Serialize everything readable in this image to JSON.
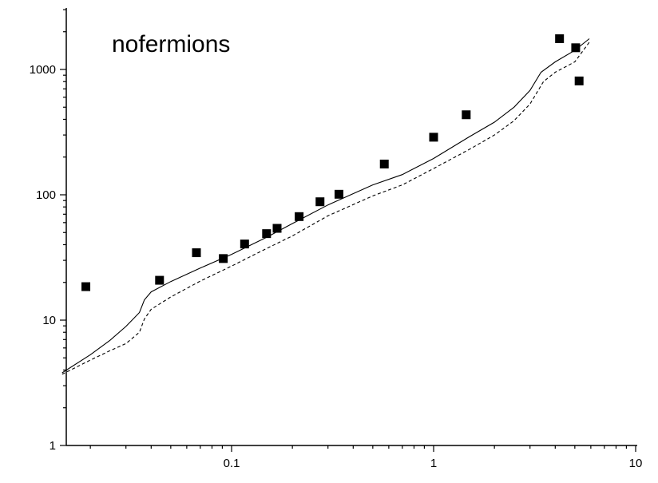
{
  "chart_data": {
    "type": "scatter",
    "title": "nofermions",
    "xlabel": "",
    "ylabel": "",
    "xscale": "log",
    "yscale": "log",
    "xlim": [
      0.0145,
      10
    ],
    "ylim": [
      1,
      5000
    ],
    "grid": false,
    "x_ticks": [
      {
        "value": 0.1,
        "label": "0.1"
      },
      {
        "value": 1,
        "label": "1"
      },
      {
        "value": 10,
        "label": "10"
      }
    ],
    "y_ticks": [
      {
        "value": 1,
        "label": "1"
      },
      {
        "value": 10,
        "label": "10"
      },
      {
        "value": 100,
        "label": "100"
      },
      {
        "value": 1000,
        "label": "1000"
      }
    ],
    "series": [
      {
        "style": "markers",
        "marker": "filled-square",
        "color": "#000000",
        "x": [
          0.019,
          0.044,
          0.067,
          0.091,
          0.116,
          0.149,
          0.168,
          0.216,
          0.274,
          0.34,
          0.57,
          1.0,
          1.45,
          4.2,
          5.05,
          5.25
        ],
        "y": [
          18.5,
          20.8,
          34.5,
          31.0,
          40.5,
          49.0,
          54.0,
          67.0,
          88.0,
          101.0,
          176.0,
          288.0,
          435.0,
          1760.0,
          1490.0,
          810.0
        ]
      },
      {
        "style": "solid-line",
        "color": "#000000",
        "x": [
          0.0145,
          0.02,
          0.025,
          0.03,
          0.035,
          0.037,
          0.04,
          0.05,
          0.07,
          0.1,
          0.15,
          0.2,
          0.3,
          0.5,
          0.7,
          1.0,
          1.5,
          2.0,
          2.5,
          3.0,
          3.4,
          4.0,
          5.0,
          5.9
        ],
        "y": [
          3.8,
          5.3,
          6.9,
          8.9,
          11.5,
          14.5,
          16.8,
          20.3,
          26.0,
          33.5,
          46.0,
          59.0,
          83.0,
          120.0,
          145.0,
          195.0,
          290.0,
          380.0,
          500.0,
          680.0,
          950.0,
          1150.0,
          1420.0,
          1760.0
        ]
      },
      {
        "style": "dashed-line",
        "color": "#000000",
        "x": [
          0.0145,
          0.02,
          0.025,
          0.03,
          0.035,
          0.037,
          0.04,
          0.05,
          0.07,
          0.1,
          0.15,
          0.2,
          0.3,
          0.5,
          0.7,
          1.0,
          1.5,
          2.0,
          2.5,
          3.0,
          3.5,
          4.0,
          5.0,
          5.9
        ],
        "y": [
          3.7,
          4.8,
          5.7,
          6.5,
          8.0,
          10.2,
          12.2,
          15.3,
          20.5,
          27.0,
          37.5,
          47.0,
          68.0,
          98.0,
          120.0,
          162.0,
          230.0,
          300.0,
          390.0,
          530.0,
          800.0,
          950.0,
          1150.0,
          1650.0
        ]
      }
    ]
  }
}
